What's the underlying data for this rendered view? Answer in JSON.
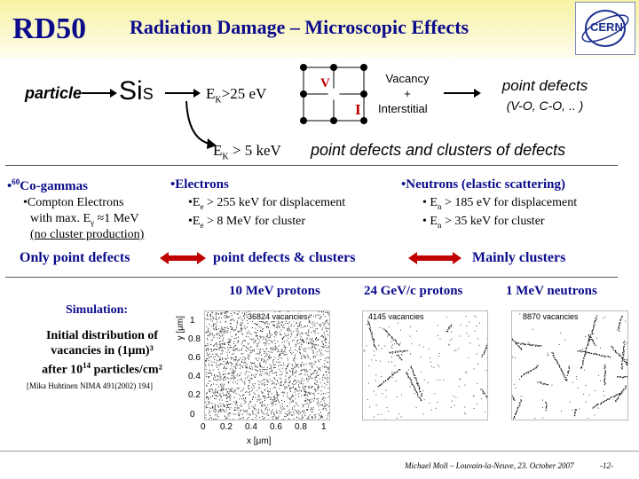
{
  "header": {
    "logo": "RD50",
    "title": "Radiation Damage – Microscopic Effects",
    "cern_logo": "CERN"
  },
  "top_diagram": {
    "particle": "particle",
    "si_base": "Si",
    "si_sub": "S",
    "ek_threshold_base": "E",
    "ek_threshold_sub": "K",
    "ek_threshold_rest": ">25 eV",
    "lattice_v": "V",
    "lattice_i": "I",
    "vacancy_line1": "Vacancy",
    "vacancy_line2": "+",
    "vacancy_line3": "Interstitial",
    "result_line1": "point defects",
    "result_line2": "(V-O, C-O, .. )",
    "ek2_base": "E",
    "ek2_sub": "K",
    "ek2_rest": " > 5 keV",
    "clusters_text": "point defects and clusters of defects"
  },
  "columns": {
    "gamma": {
      "bullet": "•",
      "sup": "60",
      "title": "Co-gammas",
      "line1": "Compton Electrons",
      "line2_a": "with max. E",
      "line2_sub": "γ",
      "line2_b": " ≈1 MeV",
      "line3": "(no cluster production)",
      "summary": "Only point defects"
    },
    "electrons": {
      "title": "Electrons",
      "line1_a": "E",
      "line1_sub": "e",
      "line1_b": " > 255 keV for displacement",
      "line2_a": "E",
      "line2_sub": "e",
      "line2_b": " >   8 MeV for cluster",
      "summary": "point defects & clusters"
    },
    "neutrons": {
      "title": "Neutrons (elastic scattering)",
      "line1_a": "E",
      "line1_sub": "n",
      "line1_b": " > 185 eV for displacement",
      "line2_a": "E",
      "line2_sub": "n",
      "line2_b": " > 35 keV for cluster",
      "summary": "Mainly clusters"
    }
  },
  "simulation": {
    "label": "Simulation:",
    "desc_line1": "Initial distribution of",
    "desc_line2": "vacancies in  (1μm)³",
    "desc_line3_a": "after 10",
    "desc_line3_sup": "14",
    "desc_line3_b": " particles/cm²",
    "reference": "[Mika Huhtinen NIMA 491(2002) 194]"
  },
  "panels": [
    {
      "heading": "10 MeV protons",
      "count": "36824 vacancies"
    },
    {
      "heading": "24 GeV/c protons",
      "count": "4145 vacancies"
    },
    {
      "heading": "1 MeV neutrons",
      "count": "8870 vacancies"
    }
  ],
  "axes": {
    "ylabel": "y [μm]",
    "xlabel": "x [μm]",
    "yticks": [
      "1",
      "0.8",
      "0.6",
      "0.4",
      "0.2",
      "0"
    ],
    "xticks": [
      "0",
      "0.2",
      "0.4",
      "0.6",
      "0.8",
      "1"
    ]
  },
  "footer": {
    "author": "Michael Moll – Louvain-la-Neuve, 23. October 2007",
    "page": "-12-"
  }
}
